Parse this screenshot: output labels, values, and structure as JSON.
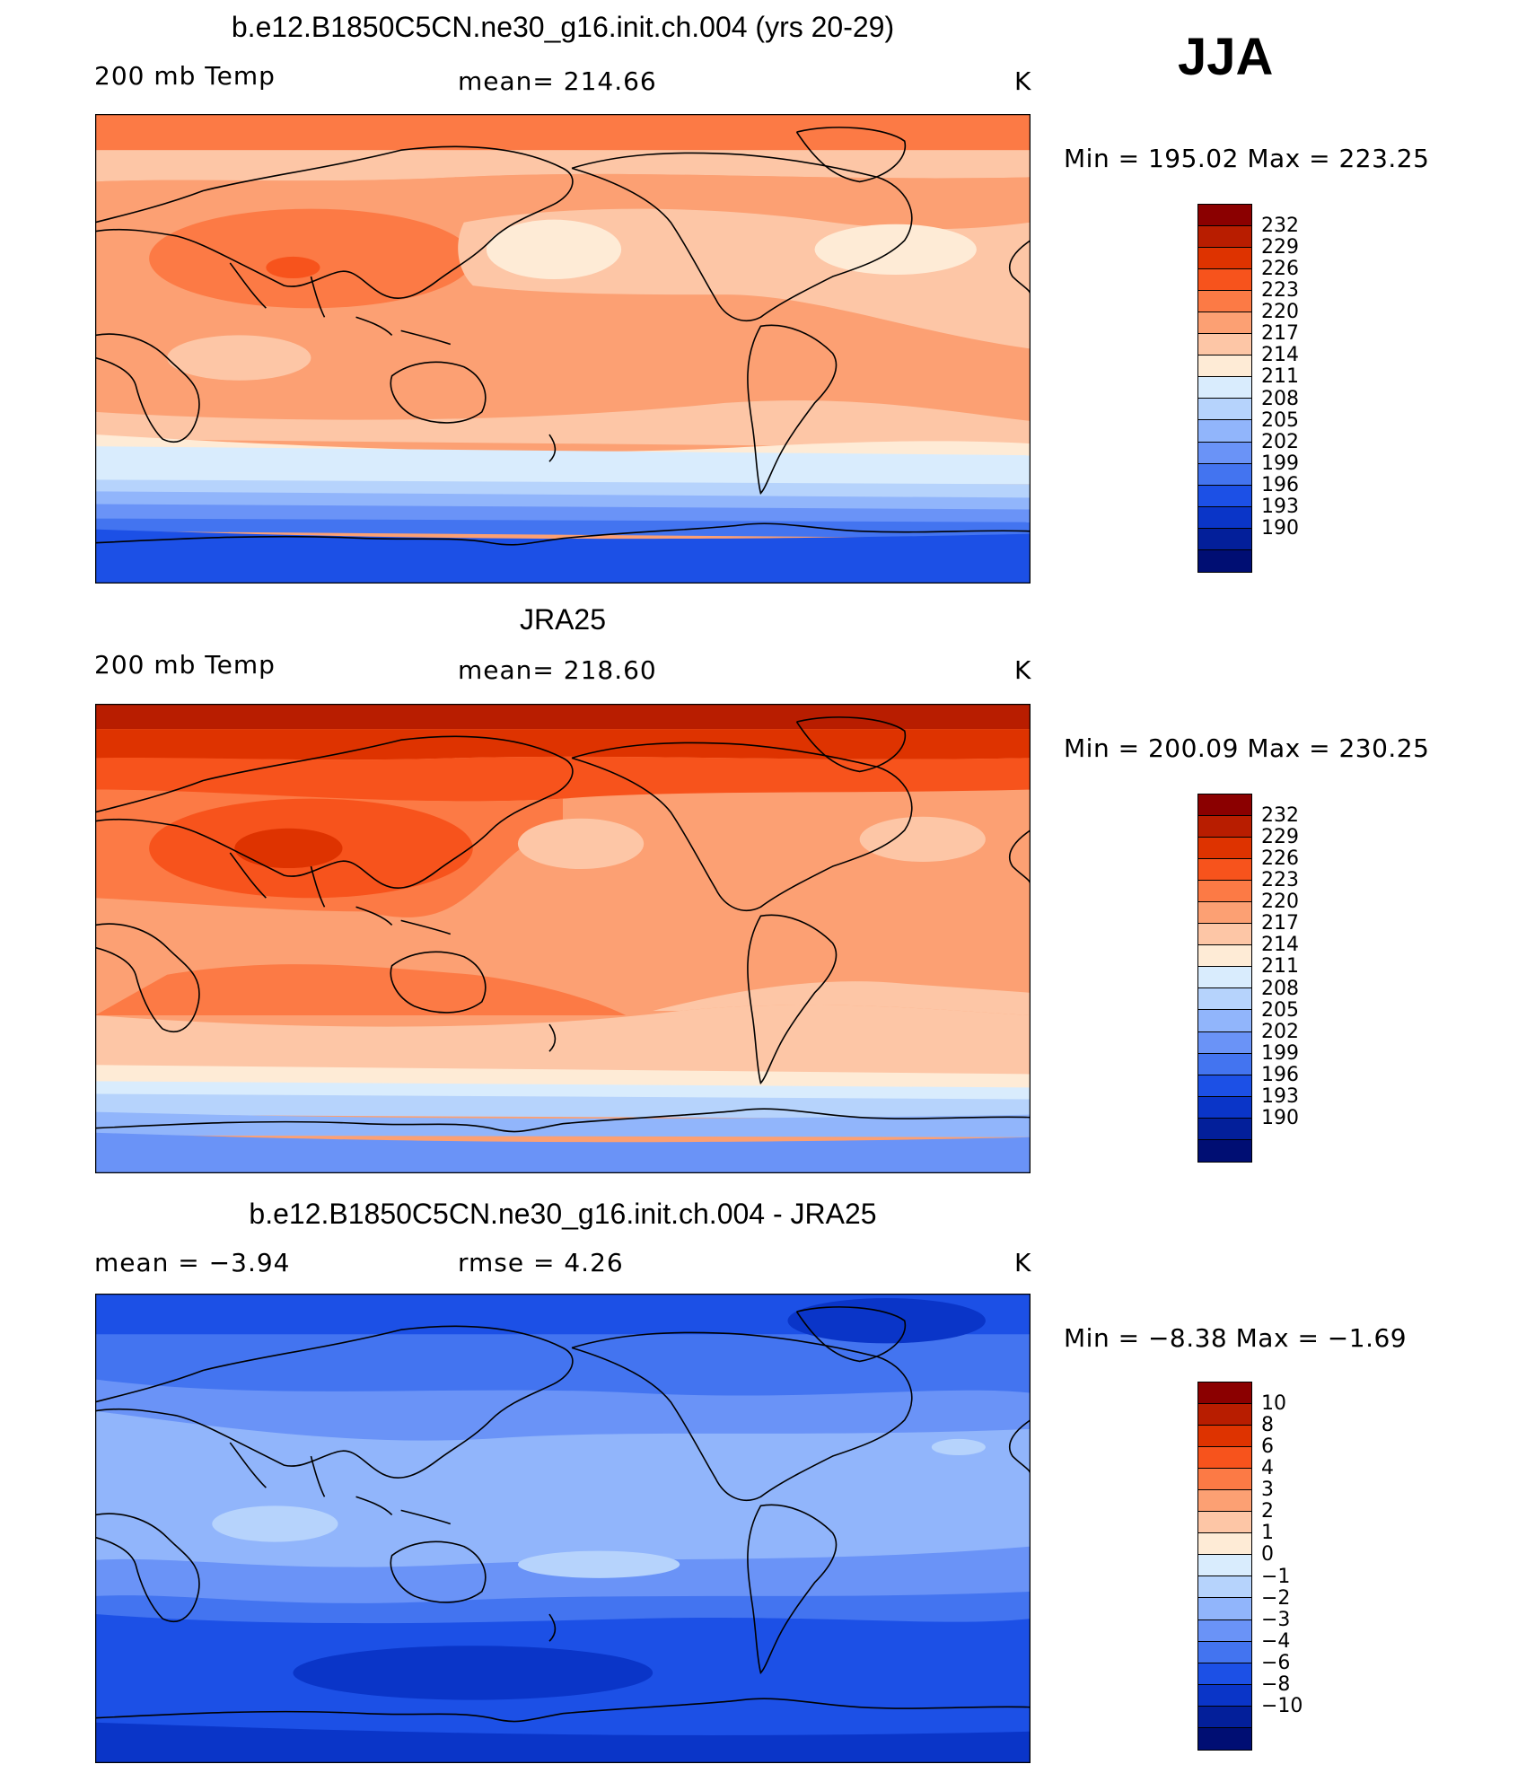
{
  "season": "JJA",
  "panels": [
    {
      "title": "b.e12.B1850C5CN.ne30_g16.init.ch.004 (yrs 20-29)",
      "left_label": "200 mb Temp",
      "center_label": "mean=  214.66",
      "right_label": "K",
      "minmax": "Min  =  195.02  Max  =  223.25"
    },
    {
      "title": "JRA25",
      "left_label": "200 mb Temp",
      "center_label": "mean=  218.60",
      "right_label": "K",
      "minmax": "Min  =  200.09  Max  =  230.25"
    },
    {
      "title": "b.e12.B1850C5CN.ne30_g16.init.ch.004 - JRA25",
      "left_label": "mean  =    −3.94",
      "center_label": "rmse  =     4.26",
      "right_label": "K",
      "minmax": "Min  =    −8.38  Max  =    −1.69"
    }
  ],
  "colorbar_abs": {
    "colors": [
      "#8b0000",
      "#b81d00",
      "#de3300",
      "#f7531c",
      "#fc7a45",
      "#fca073",
      "#fdc6a6",
      "#feebd6",
      "#d9ecfd",
      "#b6d3fc",
      "#91b5fb",
      "#6a93f7",
      "#4374f0",
      "#1c50e6",
      "#0a35c8",
      "#031f9a",
      "#000e73"
    ],
    "ticks": [
      "232",
      "229",
      "226",
      "223",
      "220",
      "217",
      "214",
      "211",
      "208",
      "205",
      "202",
      "199",
      "196",
      "193",
      "190"
    ]
  },
  "colorbar_diff": {
    "colors": [
      "#8b0000",
      "#b81d00",
      "#de3300",
      "#f7531c",
      "#fc7a45",
      "#fca073",
      "#fdc6a6",
      "#feebd6",
      "#d9ecfd",
      "#b6d3fc",
      "#91b5fb",
      "#6a93f7",
      "#4374f0",
      "#1c50e6",
      "#0a35c8",
      "#031f9a",
      "#000e73"
    ],
    "ticks": [
      "10",
      "8",
      "6",
      "4",
      "3",
      "2",
      "1",
      "0",
      "−1",
      "−2",
      "−3",
      "−4",
      "−6",
      "−8",
      "−10"
    ]
  }
}
